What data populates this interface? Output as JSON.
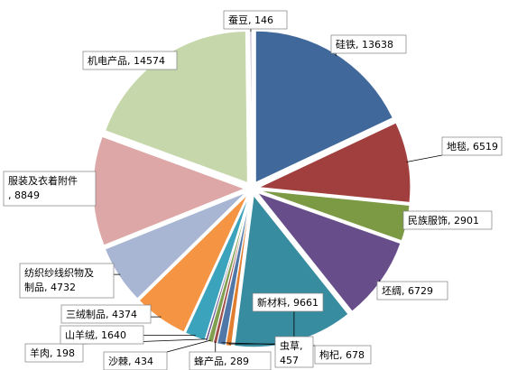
{
  "chart_data": {
    "type": "pie",
    "exploded": true,
    "start_angle_deg": 90,
    "direction": "clockwise",
    "title": "",
    "slices": [
      {
        "label": "硅铁",
        "value": 13638,
        "text": "硅铁, 13638",
        "color": "#41689b"
      },
      {
        "label": "地毯",
        "value": 6519,
        "text": "地毯, 6519",
        "color": "#a03f3e"
      },
      {
        "label": "民族服饰",
        "value": 2901,
        "text": "民族服饰, 2901",
        "color": "#7c9a43"
      },
      {
        "label": "坯绸",
        "value": 6729,
        "text": "坯绸, 6729",
        "color": "#674e8a"
      },
      {
        "label": "新材料",
        "value": 9661,
        "text": "新材料, 9661",
        "color": "#378c9f"
      },
      {
        "label": "虫草",
        "value": 457,
        "text": "虫草, 457",
        "color": "#e07d2e"
      },
      {
        "label": "枸杞",
        "value": 678,
        "text": "枸杞, 678",
        "color": "#4f78a8"
      },
      {
        "label": "蜂产品",
        "value": 289,
        "text": "蜂产品, 289",
        "color": "#a14d4c"
      },
      {
        "label": "沙棘",
        "value": 434,
        "text": "沙棘, 434",
        "color": "#80a04f"
      },
      {
        "label": "羊肉",
        "value": 198,
        "text": "羊肉, 198",
        "color": "#6e5b93"
      },
      {
        "label": "山羊绒",
        "value": 1640,
        "text": "山羊绒, 1640",
        "color": "#3ca3bd"
      },
      {
        "label": "三绒制品",
        "value": 4374,
        "text": "三绒制品, 4374",
        "color": "#f59443"
      },
      {
        "label": "纺织纱线织物及制品",
        "value": 4732,
        "text": "纺织纱线织物及制品, 4732",
        "color": "#a8b6d4"
      },
      {
        "label": "服装及衣着附件",
        "value": 8849,
        "text": "服装及衣着附件, 8849",
        "color": "#dca7a6"
      },
      {
        "label": "机电产品",
        "value": 14574,
        "text": "机电产品, 14574",
        "color": "#c6d7ab"
      },
      {
        "label": "蚕豆",
        "value": 146,
        "text": "蚕豆, 146",
        "color": "#b3a5c8"
      }
    ]
  }
}
